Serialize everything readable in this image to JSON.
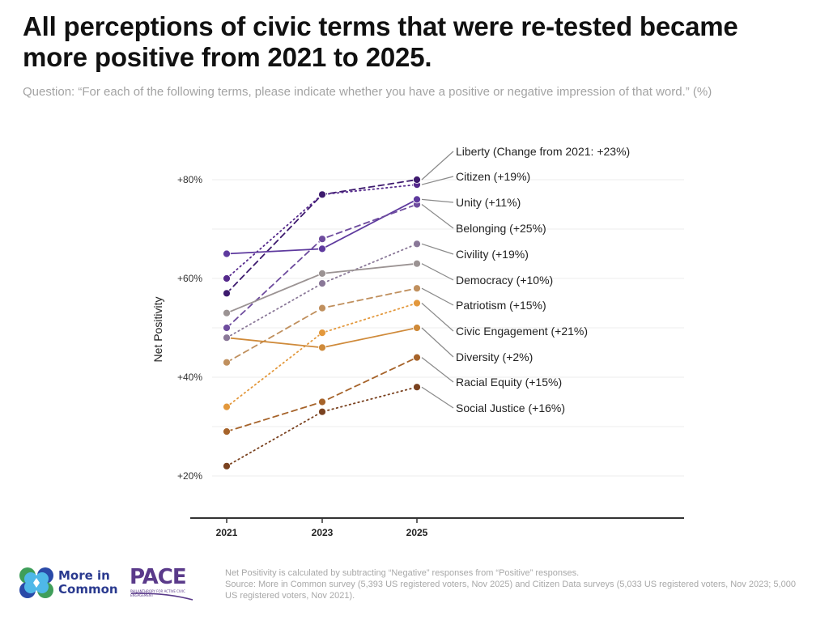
{
  "header": {
    "title": "All perceptions of civic terms that were re-tested became more positive from 2021 to 2025.",
    "subtitle": "Question: “For each of the following terms, please indicate whether you have a positive or negative impression of that word.” (%)"
  },
  "chart_data": {
    "type": "line",
    "title": "All perceptions of civic terms that were re-tested became more positive from 2021 to 2025.",
    "xlabel": "",
    "ylabel": "Net Positivity",
    "x": [
      "2021",
      "2023",
      "2025"
    ],
    "ylim": [
      11.5,
      87
    ],
    "yticks": [
      20,
      40,
      60,
      80
    ],
    "ytick_labels": [
      "+20%",
      "+40%",
      "+60%",
      "+80%"
    ],
    "grid": true,
    "series": [
      {
        "name": "Liberty",
        "label": "Liberty (Change from 2021: +23%)",
        "values": [
          57,
          77,
          80
        ],
        "color": "#3d1a6e",
        "dash": "dashed"
      },
      {
        "name": "Citizen",
        "label": "Citizen (+19%)",
        "values": [
          60,
          77,
          79
        ],
        "color": "#55298c",
        "dash": "dotted"
      },
      {
        "name": "Unity",
        "label": "Unity (+11%)",
        "values": [
          65,
          66,
          76
        ],
        "color": "#5e3a9e",
        "dash": "solid"
      },
      {
        "name": "Belonging",
        "label": "Belonging (+25%)",
        "values": [
          50,
          68,
          75
        ],
        "color": "#6e4c9e",
        "dash": "dashed"
      },
      {
        "name": "Civility",
        "label": "Civility (+19%)",
        "values": [
          48,
          59,
          67
        ],
        "color": "#8a7898",
        "dash": "dotted"
      },
      {
        "name": "Democracy",
        "label": "Democracy (+10%)",
        "values": [
          53,
          61,
          63
        ],
        "color": "#9b9393",
        "dash": "solid"
      },
      {
        "name": "Patriotism",
        "label": "Patriotism (+15%)",
        "values": [
          43,
          54,
          58
        ],
        "color": "#c0905e",
        "dash": "dashed"
      },
      {
        "name": "Civic Engagement",
        "label": "Civic Engagement (+21%)",
        "values": [
          34,
          49,
          55
        ],
        "color": "#e3983c",
        "dash": "dotted"
      },
      {
        "name": "Diversity",
        "label": "Diversity (+2%)",
        "values": [
          48,
          46,
          50
        ],
        "color": "#cf8a3a",
        "dash": "solid"
      },
      {
        "name": "Racial Equity",
        "label": "Racial Equity (+15%)",
        "values": [
          29,
          35,
          44
        ],
        "color": "#a6632a",
        "dash": "dashed"
      },
      {
        "name": "Social Justice",
        "label": "Social Justice (+16%)",
        "values": [
          22,
          33,
          38
        ],
        "color": "#7a4220",
        "dash": "dotted"
      }
    ]
  },
  "footer": {
    "note": "Net Positivity is calculated by subtracting “Negative” responses from “Positive” responses.",
    "source": "Source: More in Common survey (5,393 US registered voters, Nov 2025) and Citizen Data surveys (5,033 US registered voters, Nov 2023; 5,000 US registered voters, Nov 2021).",
    "logo1_line1": "More in",
    "logo1_line2": "Common",
    "logo2_name": "PACE",
    "logo2_tagline": "PHILANTHROPY FOR ACTIVE CIVIC ENGAGEMENT"
  }
}
